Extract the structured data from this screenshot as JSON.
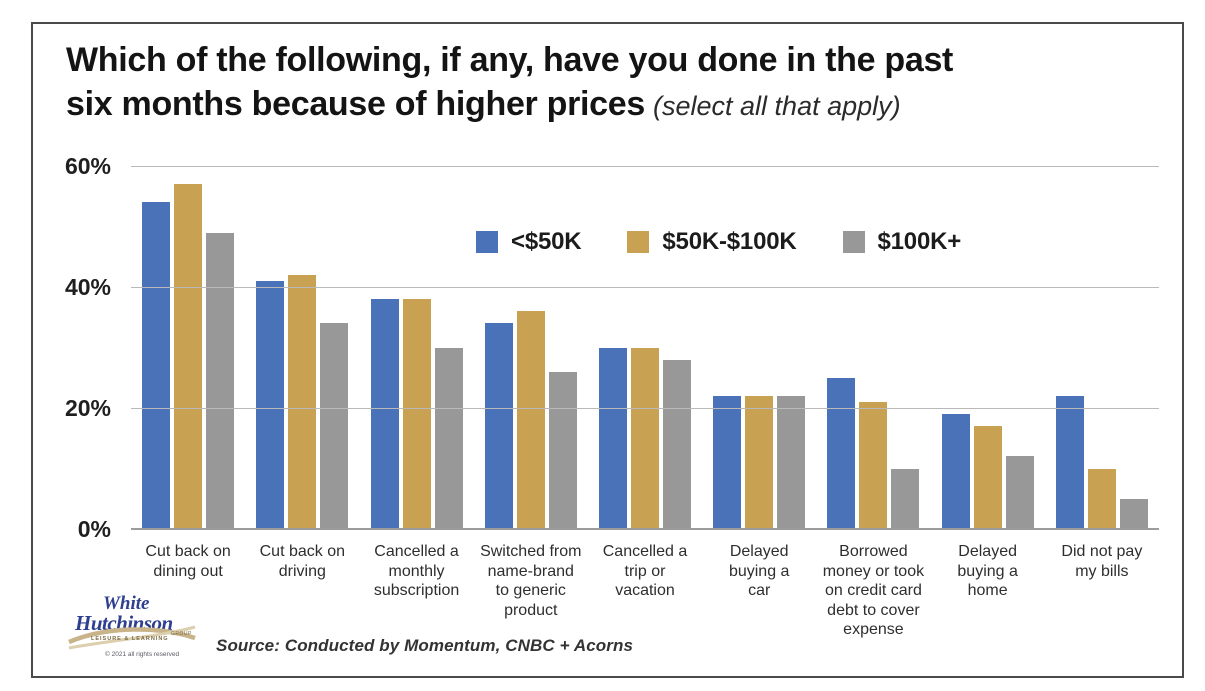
{
  "header": {
    "title_line1": "Which of the following, if any, have you done in the past",
    "title_line2": "six months because of higher prices",
    "subtitle": "(select all that apply)"
  },
  "chart_data": {
    "type": "bar",
    "title": "Which of the following, if any, have you done in the past six months because of higher prices (select all that apply)",
    "categories": [
      "Cut back on dining out",
      "Cut back on driving",
      "Cancelled a monthly subscription",
      "Switched from name-brand to generic product",
      "Cancelled a trip or vacation",
      "Delayed buying a car",
      "Borrowed money or took on credit card debt to cover expense",
      "Delayed buying a home",
      "Did not pay my bills"
    ],
    "category_display_lines": [
      [
        "Cut back on",
        "dining out"
      ],
      [
        "Cut back on",
        "driving"
      ],
      [
        "Cancelled a",
        "monthly",
        "subscription"
      ],
      [
        "Switched from",
        "name-brand",
        "to generic",
        "product"
      ],
      [
        "Cancelled a",
        "trip or",
        "vacation"
      ],
      [
        "Delayed",
        "buying a",
        "car"
      ],
      [
        "Borrowed",
        "money or took",
        "on credit card",
        "debt to cover",
        "expense"
      ],
      [
        "Delayed",
        "buying a",
        "home"
      ],
      [
        "Did not pay",
        "my bills"
      ]
    ],
    "series": [
      {
        "name": "<$50K",
        "color": "#4a72b8",
        "values": [
          54,
          41,
          38,
          34,
          30,
          22,
          25,
          19,
          22
        ]
      },
      {
        "name": "$50K-$100K",
        "color": "#c9a152",
        "values": [
          57,
          42,
          38,
          36,
          30,
          22,
          21,
          17,
          10
        ]
      },
      {
        "name": "$100K+",
        "color": "#989898",
        "values": [
          49,
          34,
          30,
          26,
          28,
          22,
          10,
          12,
          5
        ]
      }
    ],
    "xlabel": "",
    "ylabel": "",
    "ylim": [
      0,
      60
    ],
    "yticks": [
      60,
      40,
      20,
      0
    ],
    "ytick_suffix": "%",
    "grid": true,
    "legend_position": "inside-top-center"
  },
  "footer": {
    "source": "Source: Conducted by Momentum, CNBC + Acorns",
    "logo": {
      "line1": "White",
      "line2": "Hutchinson",
      "tagline": "LEISURE & LEARNING",
      "tagline2": "GROUP",
      "copyright": "© 2021 all rights reserved"
    }
  },
  "colors": {
    "accent_blue": "#4a72b8",
    "accent_gold": "#c9a152",
    "accent_gray": "#989898",
    "gridline": "#b9b9b9",
    "baseline": "#9c9c9c",
    "frame_border": "#4a4a4a",
    "logo_blue": "#2f3f8f",
    "logo_tan": "#c9b48a"
  }
}
